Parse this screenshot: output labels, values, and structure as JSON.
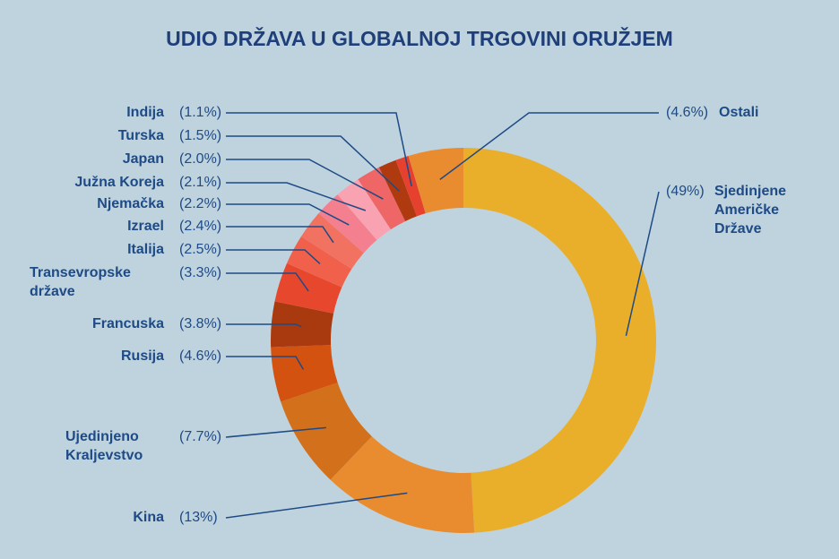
{
  "chart_data": {
    "type": "donut",
    "title": "UDIO DRŽAVA U GLOBALNOJ TRGOVINI ORUŽJEM",
    "categories": [
      "Sjedinjene Američke Države",
      "Kina",
      "Ujedinjeno Kraljevstvo",
      "Rusija",
      "Francuska",
      "Transevropske države",
      "Italija",
      "Izrael",
      "Njemačka",
      "Južna Koreja",
      "Japan",
      "Turska",
      "Indija",
      "Ostali"
    ],
    "values": [
      49,
      13,
      7.7,
      4.6,
      3.8,
      3.3,
      2.5,
      2.4,
      2.2,
      2.1,
      2.0,
      1.5,
      1.1,
      4.6
    ],
    "value_labels": [
      "(49%)",
      "(13%)",
      "(7.7%)",
      "(4.6%)",
      "(3.8%)",
      "(3.3%)",
      "(2.5%)",
      "(2.4%)",
      "(2.2%)",
      "(2.1%)",
      "(2.0%)",
      "(1.5%)",
      "(1.1%)",
      "(4.6%)"
    ],
    "colors": [
      "#e9ae2a",
      "#e98c2f",
      "#d3701b",
      "#d4520f",
      "#a93a10",
      "#e6472d",
      "#f1604b",
      "#f27262",
      "#f47f8f",
      "#f8a2b2",
      "#ef6666",
      "#af3a10",
      "#e6402f",
      "#e98c2f"
    ]
  }
}
